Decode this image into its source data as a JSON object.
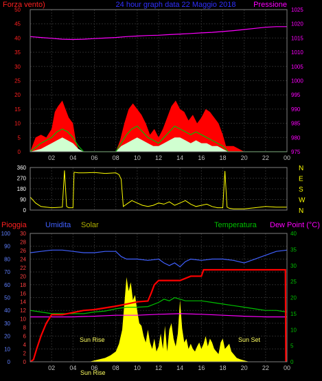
{
  "header": {
    "left_label": "Forza vento)",
    "title": "24 hour graph data  22 Maggio 2018",
    "right_label": "Pressione"
  },
  "colors": {
    "wind": "#ff0000",
    "pressure": "#ff00ff",
    "gust": "#00c000",
    "wind_avg": "#ffffff",
    "direction": "#ffff00",
    "rain": "#ff0000",
    "humidity": "#4060ff",
    "solar": "#ffff00",
    "temperature": "#00c000",
    "dew_point": "#ff00ff",
    "grid": "#2a2a2a",
    "title": "#3030ff"
  },
  "x_ticks": [
    "02",
    "04",
    "06",
    "08",
    "10",
    "12",
    "14",
    "16",
    "18",
    "20",
    "22",
    "00"
  ],
  "chart_data": [
    {
      "type": "area",
      "name": "wind_pressure",
      "title": "24 hour graph data  22 Maggio 2018",
      "y_left": {
        "label": "Forza vento)",
        "range": [
          0,
          50
        ],
        "ticks": [
          "0",
          "5",
          "10",
          "15",
          "20",
          "25",
          "30",
          "35",
          "40",
          "45",
          "50"
        ]
      },
      "y_right": {
        "label": "Pressione",
        "range": [
          975,
          1025
        ],
        "ticks": [
          "975",
          "980",
          "985",
          "990",
          "995",
          "1000",
          "1005",
          "1010",
          "1015",
          "1020",
          "1025"
        ]
      },
      "x_range_hours": [
        0,
        24
      ],
      "wind_gust": {
        "x": [
          0,
          0.5,
          1,
          1.5,
          2,
          2.3,
          2.6,
          3,
          3.3,
          3.6,
          4,
          4.3,
          4.6,
          5,
          6,
          7,
          8,
          8.4,
          8.8,
          9.2,
          9.6,
          10,
          10.4,
          10.8,
          11.2,
          11.6,
          12,
          12.4,
          12.8,
          13.2,
          13.6,
          14,
          14.4,
          14.8,
          15.2,
          15.6,
          16,
          16.4,
          16.8,
          17.2,
          17.6,
          18,
          18.3,
          19,
          20,
          21,
          22,
          23,
          24
        ],
        "y": [
          0,
          5,
          6,
          5,
          8,
          14,
          16,
          18,
          15,
          12,
          10,
          3,
          0,
          0,
          0,
          0,
          0,
          4,
          10,
          15,
          17,
          15,
          13,
          10,
          6,
          8,
          5,
          8,
          12,
          16,
          18,
          15,
          14,
          11,
          13,
          10,
          12,
          15,
          14,
          12,
          10,
          6,
          2,
          2,
          0,
          0,
          0,
          0,
          0
        ]
      },
      "wind_mid": {
        "x": [
          0,
          1,
          2,
          2.5,
          3,
          3.5,
          4,
          4.5,
          5,
          8,
          8.5,
          9,
          9.5,
          10,
          10.5,
          11,
          11.5,
          12,
          12.5,
          13,
          13.5,
          14,
          14.5,
          15,
          15.5,
          16,
          16.5,
          17,
          17.5,
          18,
          18.5,
          24
        ],
        "y": [
          0,
          3,
          5,
          7,
          8,
          7,
          5,
          2,
          0,
          0,
          3,
          6,
          8,
          9,
          7,
          5,
          4,
          3,
          5,
          7,
          9,
          8,
          7,
          6,
          7,
          6,
          5,
          4,
          3,
          2,
          0,
          0
        ]
      },
      "wind_avg": {
        "x": [
          0,
          1,
          2,
          2.5,
          3,
          3.5,
          4,
          4.5,
          5,
          8,
          8.5,
          9,
          9.5,
          10,
          10.5,
          11,
          11.5,
          12,
          12.5,
          13,
          13.5,
          14,
          14.5,
          15,
          15.5,
          16,
          16.5,
          17,
          17.5,
          18,
          18.5,
          24
        ],
        "y": [
          0,
          1,
          3,
          4,
          5,
          4,
          3,
          1,
          0,
          0,
          2,
          3,
          4,
          5,
          4,
          3,
          2,
          2,
          3,
          4,
          5,
          5,
          4,
          3,
          4,
          3,
          3,
          2,
          2,
          1,
          0,
          0
        ]
      },
      "pressure": {
        "x": [
          0,
          1,
          2,
          3,
          4,
          5,
          6,
          7,
          8,
          9,
          10,
          11,
          12,
          13,
          14,
          15,
          16,
          17,
          18,
          19,
          20,
          21,
          22,
          23,
          24
        ],
        "y": [
          1015.5,
          1015.2,
          1014.9,
          1014.6,
          1014.5,
          1014.6,
          1014.8,
          1015.0,
          1015.2,
          1015.5,
          1015.7,
          1015.9,
          1016.0,
          1016.2,
          1016.4,
          1016.6,
          1016.8,
          1017.0,
          1017.3,
          1017.6,
          1018.0,
          1018.4,
          1018.8,
          1019.0,
          1019.0
        ]
      }
    },
    {
      "type": "line",
      "name": "wind_direction",
      "y_left": {
        "range": [
          0,
          360
        ],
        "ticks": [
          "0",
          "90",
          "180",
          "270",
          "360"
        ]
      },
      "y_right_labels": [
        "N",
        "W",
        "S",
        "E",
        "N"
      ],
      "x_range_hours": [
        0,
        24
      ],
      "direction": {
        "x": [
          0,
          0.5,
          1,
          1.5,
          2,
          2.5,
          3,
          3.2,
          3.4,
          3.6,
          4,
          4.1,
          4.5,
          5,
          6,
          7,
          8,
          8.3,
          8.5,
          8.7,
          9,
          9.5,
          10,
          10.5,
          11,
          11.5,
          12,
          12.5,
          13,
          13.5,
          14,
          14.5,
          15,
          15.5,
          16,
          16.5,
          17,
          17.5,
          18,
          18.2,
          18.4,
          18.6,
          19,
          20,
          21,
          22,
          23,
          24
        ],
        "y": [
          110,
          60,
          30,
          25,
          20,
          22,
          25,
          335,
          30,
          20,
          20,
          320,
          315,
          315,
          318,
          310,
          315,
          300,
          260,
          30,
          50,
          80,
          60,
          40,
          30,
          40,
          60,
          50,
          70,
          40,
          60,
          80,
          50,
          30,
          40,
          50,
          30,
          20,
          20,
          330,
          25,
          15,
          10,
          10,
          20,
          30,
          25,
          25
        ]
      }
    },
    {
      "type": "line",
      "name": "weather_combined",
      "labels": {
        "rain": "Pioggia",
        "humidity": "Umidita",
        "solar": "Solar",
        "temperature": "Temperatura",
        "dew_point": "Dew Point (°C)"
      },
      "y_left_humidity": {
        "range": [
          0,
          100
        ],
        "ticks": [
          "0",
          "10",
          "20",
          "30",
          "40",
          "50",
          "60",
          "70",
          "80",
          "90",
          "100"
        ]
      },
      "y_left_rain": {
        "range": [
          0,
          30
        ],
        "ticks": [
          "0",
          "2",
          "4",
          "6",
          "8",
          "10",
          "12",
          "14",
          "16",
          "18",
          "20",
          "22",
          "24",
          "26",
          "28",
          "30"
        ]
      },
      "y_right_temp": {
        "range": [
          0,
          40
        ],
        "ticks": [
          "0",
          "5",
          "10",
          "15",
          "20",
          "25",
          "30",
          "35",
          "40"
        ]
      },
      "annotations": [
        "Sun Rise",
        "Sun Set",
        "Sun Rise"
      ],
      "x_range_hours": [
        0,
        24
      ],
      "humidity": {
        "x": [
          0,
          1,
          2,
          3,
          4,
          5,
          6,
          7,
          8,
          8.5,
          9,
          10,
          11,
          12,
          12.5,
          13,
          13.5,
          14,
          14.5,
          15,
          16,
          17,
          18,
          19,
          20,
          21,
          22,
          23,
          24
        ],
        "y": [
          85,
          86,
          87,
          87,
          86,
          85,
          85,
          86,
          86,
          82,
          80,
          80,
          79,
          80,
          77,
          75,
          77,
          74,
          78,
          80,
          79,
          80,
          80,
          79,
          77,
          80,
          83,
          86,
          87
        ]
      },
      "rain": {
        "x": [
          0,
          0.3,
          0.6,
          1,
          1.5,
          2,
          3,
          4,
          5,
          6,
          7,
          8,
          9,
          10,
          11,
          11.3,
          11.6,
          12,
          13,
          14,
          15,
          16,
          16.2,
          17,
          18,
          19,
          20,
          21,
          22,
          23,
          23.85,
          23.9
        ],
        "y": [
          0,
          0.5,
          3,
          6,
          9,
          11,
          11,
          11.5,
          12,
          12.2,
          12.6,
          13,
          13.5,
          14,
          14.2,
          16,
          18,
          19,
          19,
          19,
          20,
          20,
          21.5,
          21.5,
          21.5,
          21.5,
          21.5,
          21.5,
          21.5,
          21.5,
          21.5,
          0
        ]
      },
      "temperature": {
        "x": [
          0,
          1,
          2,
          3,
          4,
          5,
          6,
          7,
          8,
          9,
          10,
          11,
          12,
          12.5,
          13,
          13.5,
          14,
          14.5,
          15,
          16,
          17,
          18,
          19,
          20,
          21,
          22,
          23,
          24
        ],
        "y": [
          16,
          15.5,
          15,
          15,
          15,
          15,
          15.5,
          15.8,
          16.5,
          17,
          17,
          17.2,
          18.5,
          19.5,
          19,
          20,
          19.5,
          19,
          19,
          19,
          18.5,
          18,
          17.5,
          17,
          16.5,
          16,
          16,
          15.5
        ]
      },
      "dew_point": {
        "x": [
          0,
          2,
          4,
          6,
          8,
          10,
          12,
          14,
          16,
          18,
          20,
          22,
          24
        ],
        "y": [
          14,
          14,
          14,
          14.2,
          14.5,
          14.5,
          14.8,
          15,
          14.8,
          14.5,
          14.2,
          14,
          14
        ]
      },
      "solar": {
        "x": [
          5.5,
          6,
          6.5,
          7,
          7.5,
          8,
          8.3,
          8.6,
          8.8,
          9,
          9.2,
          9.4,
          9.6,
          9.8,
          10,
          10.2,
          10.4,
          10.6,
          10.8,
          11,
          11.2,
          11.4,
          11.6,
          11.8,
          12,
          12.2,
          12.4,
          12.6,
          12.8,
          13,
          13.2,
          13.4,
          13.6,
          13.8,
          14,
          14.2,
          14.4,
          14.6,
          14.8,
          15,
          15.2,
          15.4,
          15.6,
          15.8,
          16,
          16.2,
          16.4,
          16.6,
          16.8,
          17,
          17.2,
          17.4,
          17.6,
          17.8,
          18,
          18.2,
          18.4,
          18.6,
          18.8,
          19,
          19.3,
          19.6,
          20,
          20.5,
          21
        ],
        "y": [
          0,
          1,
          2,
          3,
          5,
          8,
          14,
          25,
          45,
          66,
          55,
          62,
          48,
          52,
          40,
          30,
          28,
          20,
          15,
          25,
          15,
          10,
          18,
          8,
          12,
          22,
          10,
          28,
          8,
          25,
          30,
          18,
          12,
          22,
          48,
          26,
          15,
          18,
          10,
          14,
          10,
          8,
          12,
          15,
          10,
          14,
          20,
          12,
          18,
          15,
          10,
          8,
          6,
          15,
          18,
          10,
          12,
          14,
          8,
          6,
          3,
          2,
          1,
          0,
          0
        ]
      }
    }
  ]
}
